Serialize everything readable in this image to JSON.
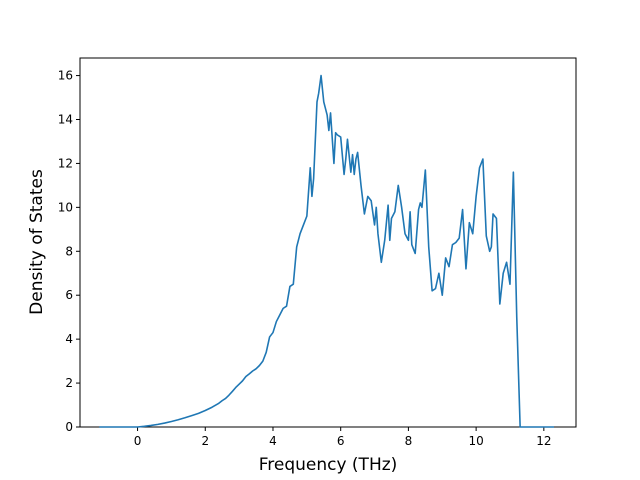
{
  "chart_data": {
    "type": "line",
    "title": "",
    "xlabel": "Frequency (THz)",
    "ylabel": "Density of States",
    "xlim": [
      -1.7,
      12.95
    ],
    "ylim": [
      0,
      16.8
    ],
    "xticks": [
      0,
      2,
      4,
      6,
      8,
      10,
      12
    ],
    "yticks": [
      0,
      2,
      4,
      6,
      8,
      10,
      12,
      14,
      16
    ],
    "grid": false,
    "line_color": "#1f77b4",
    "series": [
      {
        "x": [
          -1.13,
          -0.5,
          0.0,
          0.2,
          0.4,
          0.6,
          0.8,
          1.0,
          1.2,
          1.4,
          1.6,
          1.8,
          2.0,
          2.2,
          2.4,
          2.5,
          2.6,
          2.7,
          2.8,
          2.9,
          3.0,
          3.1,
          3.2,
          3.3,
          3.4,
          3.5,
          3.6,
          3.7,
          3.8,
          3.9,
          4.0,
          4.1,
          4.2,
          4.3,
          4.4,
          4.5,
          4.6,
          4.7,
          4.8,
          4.9,
          5.0,
          5.1,
          5.15,
          5.2,
          5.3,
          5.35,
          5.42,
          5.5,
          5.6,
          5.65,
          5.7,
          5.8,
          5.85,
          5.9,
          6.0,
          6.1,
          6.15,
          6.2,
          6.3,
          6.35,
          6.4,
          6.45,
          6.5,
          6.6,
          6.7,
          6.8,
          6.9,
          7.0,
          7.05,
          7.1,
          7.2,
          7.3,
          7.4,
          7.45,
          7.5,
          7.6,
          7.7,
          7.75,
          7.8,
          7.9,
          8.0,
          8.05,
          8.1,
          8.2,
          8.3,
          8.35,
          8.4,
          8.5,
          8.6,
          8.7,
          8.8,
          8.9,
          9.0,
          9.1,
          9.2,
          9.3,
          9.4,
          9.5,
          9.6,
          9.7,
          9.8,
          9.9,
          10.0,
          10.1,
          10.2,
          10.3,
          10.4,
          10.45,
          10.5,
          10.6,
          10.7,
          10.8,
          10.9,
          11.0,
          11.1,
          11.2,
          11.3,
          11.5,
          12.3
        ],
        "y": [
          0.0,
          0.0,
          0.0,
          0.03,
          0.07,
          0.12,
          0.18,
          0.25,
          0.33,
          0.42,
          0.52,
          0.62,
          0.75,
          0.9,
          1.08,
          1.2,
          1.3,
          1.45,
          1.62,
          1.8,
          1.95,
          2.1,
          2.3,
          2.42,
          2.55,
          2.65,
          2.8,
          3.0,
          3.4,
          4.1,
          4.3,
          4.8,
          5.1,
          5.4,
          5.5,
          6.4,
          6.5,
          8.2,
          8.8,
          9.2,
          9.6,
          11.8,
          10.5,
          11.3,
          14.8,
          15.2,
          16.0,
          14.8,
          14.2,
          13.5,
          14.3,
          12.0,
          13.4,
          13.3,
          13.2,
          11.5,
          12.2,
          13.1,
          11.6,
          12.4,
          11.5,
          12.2,
          12.5,
          11.0,
          9.7,
          10.5,
          10.3,
          9.2,
          10.0,
          8.8,
          7.5,
          8.5,
          10.1,
          8.5,
          9.5,
          9.8,
          11.0,
          10.5,
          10.0,
          8.8,
          8.5,
          9.8,
          8.3,
          7.9,
          9.9,
          10.2,
          10.0,
          11.7,
          8.2,
          6.2,
          6.3,
          7.0,
          6.0,
          7.7,
          7.3,
          8.3,
          8.4,
          8.6,
          9.9,
          7.2,
          9.3,
          8.8,
          10.5,
          11.8,
          12.2,
          8.7,
          8.0,
          8.2,
          9.7,
          9.5,
          5.6,
          7.0,
          7.5,
          6.5,
          11.6,
          5.0,
          0.0,
          0.0,
          0.0
        ]
      }
    ]
  }
}
